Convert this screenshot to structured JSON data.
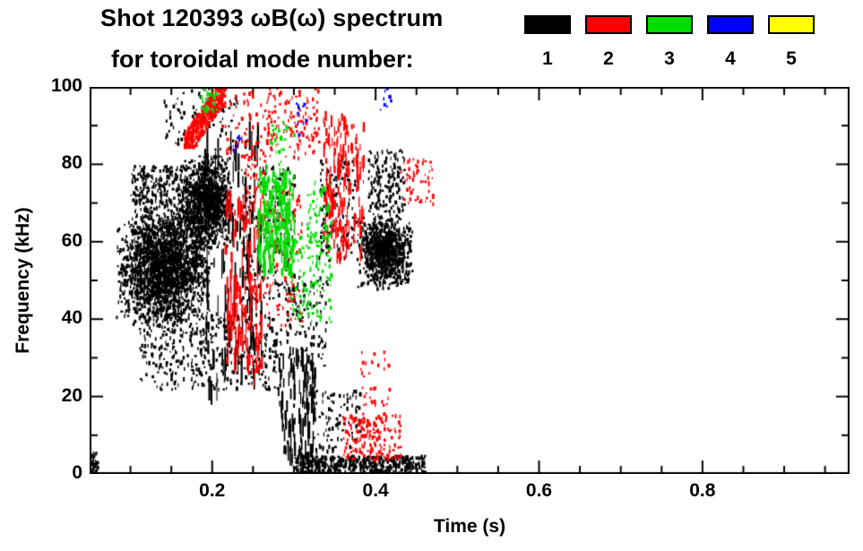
{
  "chart_data": {
    "type": "scatter",
    "title": "Shot 120393 ωB(ω) spectrum",
    "subtitle": "for toroidal mode number:",
    "xlabel": "Time (s)",
    "ylabel": "Frequency (kHz)",
    "xlim": [
      0.05,
      0.98
    ],
    "ylim": [
      0,
      100
    ],
    "x_major_ticks": [
      0.2,
      0.4,
      0.6,
      0.8
    ],
    "x_tick_labels": [
      "0.2",
      "0.4",
      "0.6",
      "0.8"
    ],
    "x_minor_step": 0.05,
    "y_major_ticks": [
      0,
      20,
      40,
      60,
      80,
      100
    ],
    "y_tick_labels": [
      "0",
      "20",
      "40",
      "60",
      "80",
      "100"
    ],
    "y_minor_step": 10,
    "grid": false,
    "tick_direction": "in",
    "frame": "box",
    "background": "#ffffff",
    "legend": {
      "position": "top-right",
      "entries": [
        {
          "label": "1",
          "color": "#000000"
        },
        {
          "label": "2",
          "color": "#ff0000"
        },
        {
          "label": "3",
          "color": "#00dd00"
        },
        {
          "label": "4",
          "color": "#0000ff"
        },
        {
          "label": "5",
          "color": "#ffff00"
        }
      ]
    },
    "series": [
      {
        "name": "1",
        "color": "#000000",
        "clusters": [
          {
            "t": [
              0.08,
              0.2
            ],
            "f": [
              38,
              68
            ],
            "n": 2000,
            "style": "blob"
          },
          {
            "t": [
              0.1,
              0.17
            ],
            "f": [
              62,
              80
            ],
            "n": 400,
            "style": "speck"
          },
          {
            "t": [
              0.16,
              0.225
            ],
            "f": [
              58,
              83
            ],
            "n": 1100,
            "style": "blob"
          },
          {
            "t": [
              0.19,
              0.26
            ],
            "f": [
              20,
              88
            ],
            "n": 110,
            "style": "streak",
            "len": [
              6,
              36
            ]
          },
          {
            "t": [
              0.11,
              0.285
            ],
            "f": [
              22,
              42
            ],
            "n": 450,
            "style": "speck"
          },
          {
            "t": [
              0.28,
              0.325
            ],
            "f": [
              3,
              32
            ],
            "n": 130,
            "style": "streak",
            "len": [
              4,
              22
            ]
          },
          {
            "t": [
              0.375,
              0.445
            ],
            "f": [
              48,
              68
            ],
            "n": 900,
            "style": "blob"
          },
          {
            "t": [
              0.39,
              0.435
            ],
            "f": [
              68,
              84
            ],
            "n": 170,
            "style": "speck"
          },
          {
            "t": [
              0.3,
              0.46
            ],
            "f": [
              0,
              5
            ],
            "n": 550,
            "style": "speck"
          },
          {
            "t": [
              0.04,
              0.06
            ],
            "f": [
              1,
              6
            ],
            "n": 70,
            "style": "speck"
          },
          {
            "t": [
              0.32,
              0.38
            ],
            "f": [
              6,
              22
            ],
            "n": 100,
            "style": "speck"
          },
          {
            "t": [
              0.14,
              0.23
            ],
            "f": [
              84,
              100
            ],
            "n": 90,
            "style": "speck"
          },
          {
            "t": [
              0.235,
              0.3
            ],
            "f": [
              45,
              80
            ],
            "n": 220,
            "style": "speck"
          },
          {
            "t": [
              0.33,
              0.375
            ],
            "f": [
              55,
              82
            ],
            "n": 130,
            "style": "speck"
          },
          {
            "t": [
              0.29,
              0.34
            ],
            "f": [
              28,
              52
            ],
            "n": 110,
            "style": "speck"
          }
        ]
      },
      {
        "name": "2",
        "color": "#ff0000",
        "clusters": [
          {
            "t": [
              0.165,
              0.215
            ],
            "f": [
              85,
              100
            ],
            "n": 450,
            "style": "diag"
          },
          {
            "t": [
              0.21,
              0.33
            ],
            "f": [
              82,
              100
            ],
            "n": 200,
            "style": "speck"
          },
          {
            "t": [
              0.215,
              0.26
            ],
            "f": [
              25,
              72
            ],
            "n": 130,
            "style": "streak",
            "len": [
              5,
              28
            ]
          },
          {
            "t": [
              0.26,
              0.31
            ],
            "f": [
              38,
              75
            ],
            "n": 110,
            "style": "speck"
          },
          {
            "t": [
              0.335,
              0.385
            ],
            "f": [
              55,
              92
            ],
            "n": 180,
            "style": "streak",
            "len": [
              4,
              16
            ]
          },
          {
            "t": [
              0.36,
              0.43
            ],
            "f": [
              4,
              16
            ],
            "n": 180,
            "style": "speck"
          },
          {
            "t": [
              0.43,
              0.47
            ],
            "f": [
              70,
              82
            ],
            "n": 60,
            "style": "speck"
          },
          {
            "t": [
              0.38,
              0.42
            ],
            "f": [
              18,
              32
            ],
            "n": 35,
            "style": "speck"
          },
          {
            "t": [
              0.24,
              0.265
            ],
            "f": [
              72,
              86
            ],
            "n": 40,
            "style": "speck"
          }
        ]
      },
      {
        "name": "3",
        "color": "#00dd00",
        "clusters": [
          {
            "t": [
              0.255,
              0.3
            ],
            "f": [
              52,
              78
            ],
            "n": 240,
            "style": "streak",
            "len": [
              4,
              14
            ]
          },
          {
            "t": [
              0.295,
              0.345
            ],
            "f": [
              38,
              62
            ],
            "n": 130,
            "style": "speck"
          },
          {
            "t": [
              0.315,
              0.345
            ],
            "f": [
              60,
              76
            ],
            "n": 70,
            "style": "speck"
          },
          {
            "t": [
              0.185,
              0.205
            ],
            "f": [
              94,
              100
            ],
            "n": 35,
            "style": "speck"
          },
          {
            "t": [
              0.27,
              0.3
            ],
            "f": [
              78,
              92
            ],
            "n": 35,
            "style": "speck"
          }
        ]
      },
      {
        "name": "4",
        "color": "#0000ff",
        "clusters": [
          {
            "t": [
              0.3,
              0.315
            ],
            "f": [
              88,
              96
            ],
            "n": 12,
            "style": "speck"
          },
          {
            "t": [
              0.405,
              0.425
            ],
            "f": [
              94,
              100
            ],
            "n": 10,
            "style": "speck"
          },
          {
            "t": [
              0.225,
              0.235
            ],
            "f": [
              84,
              90
            ],
            "n": 8,
            "style": "speck"
          }
        ]
      },
      {
        "name": "5",
        "color": "#ffff00",
        "clusters": []
      }
    ]
  }
}
